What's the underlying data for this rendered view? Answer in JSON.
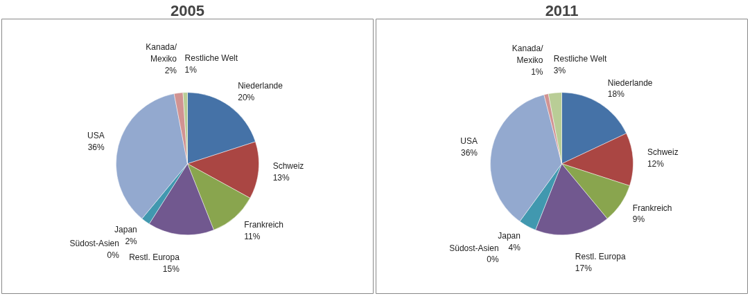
{
  "chart_data": [
    {
      "type": "pie",
      "title": "2005",
      "categories": [
        "Niederlande",
        "Schweiz",
        "Frankreich",
        "Restl. Europa",
        "Japan",
        "Südost-Asien",
        "USA",
        "Kanada/Mexiko",
        "Restliche Welt"
      ],
      "values": [
        20,
        13,
        11,
        15,
        2,
        0,
        36,
        2,
        1
      ],
      "colors": [
        "#4572a7",
        "#aa4643",
        "#89a54e",
        "#71588f",
        "#4198af",
        "#db843d",
        "#93a9cf",
        "#d19392",
        "#b9cd96"
      ],
      "value_labels": [
        "20%",
        "13%",
        "11%",
        "15%",
        "2%",
        "0%",
        "36%",
        "2%",
        "1%"
      ]
    },
    {
      "type": "pie",
      "title": "2011",
      "categories": [
        "Niederlande",
        "Schweiz",
        "Frankreich",
        "Restl. Europa",
        "Japan",
        "Südost-Asien",
        "USA",
        "Kanada/Mexiko",
        "Restliche Welt"
      ],
      "values": [
        18,
        12,
        9,
        17,
        4,
        0,
        36,
        1,
        3
      ],
      "colors": [
        "#4572a7",
        "#aa4643",
        "#89a54e",
        "#71588f",
        "#4198af",
        "#db843d",
        "#93a9cf",
        "#d19392",
        "#b9cd96"
      ],
      "value_labels": [
        "18%",
        "12%",
        "9%",
        "17%",
        "4%",
        "0%",
        "36%",
        "1%",
        "3%"
      ]
    }
  ]
}
